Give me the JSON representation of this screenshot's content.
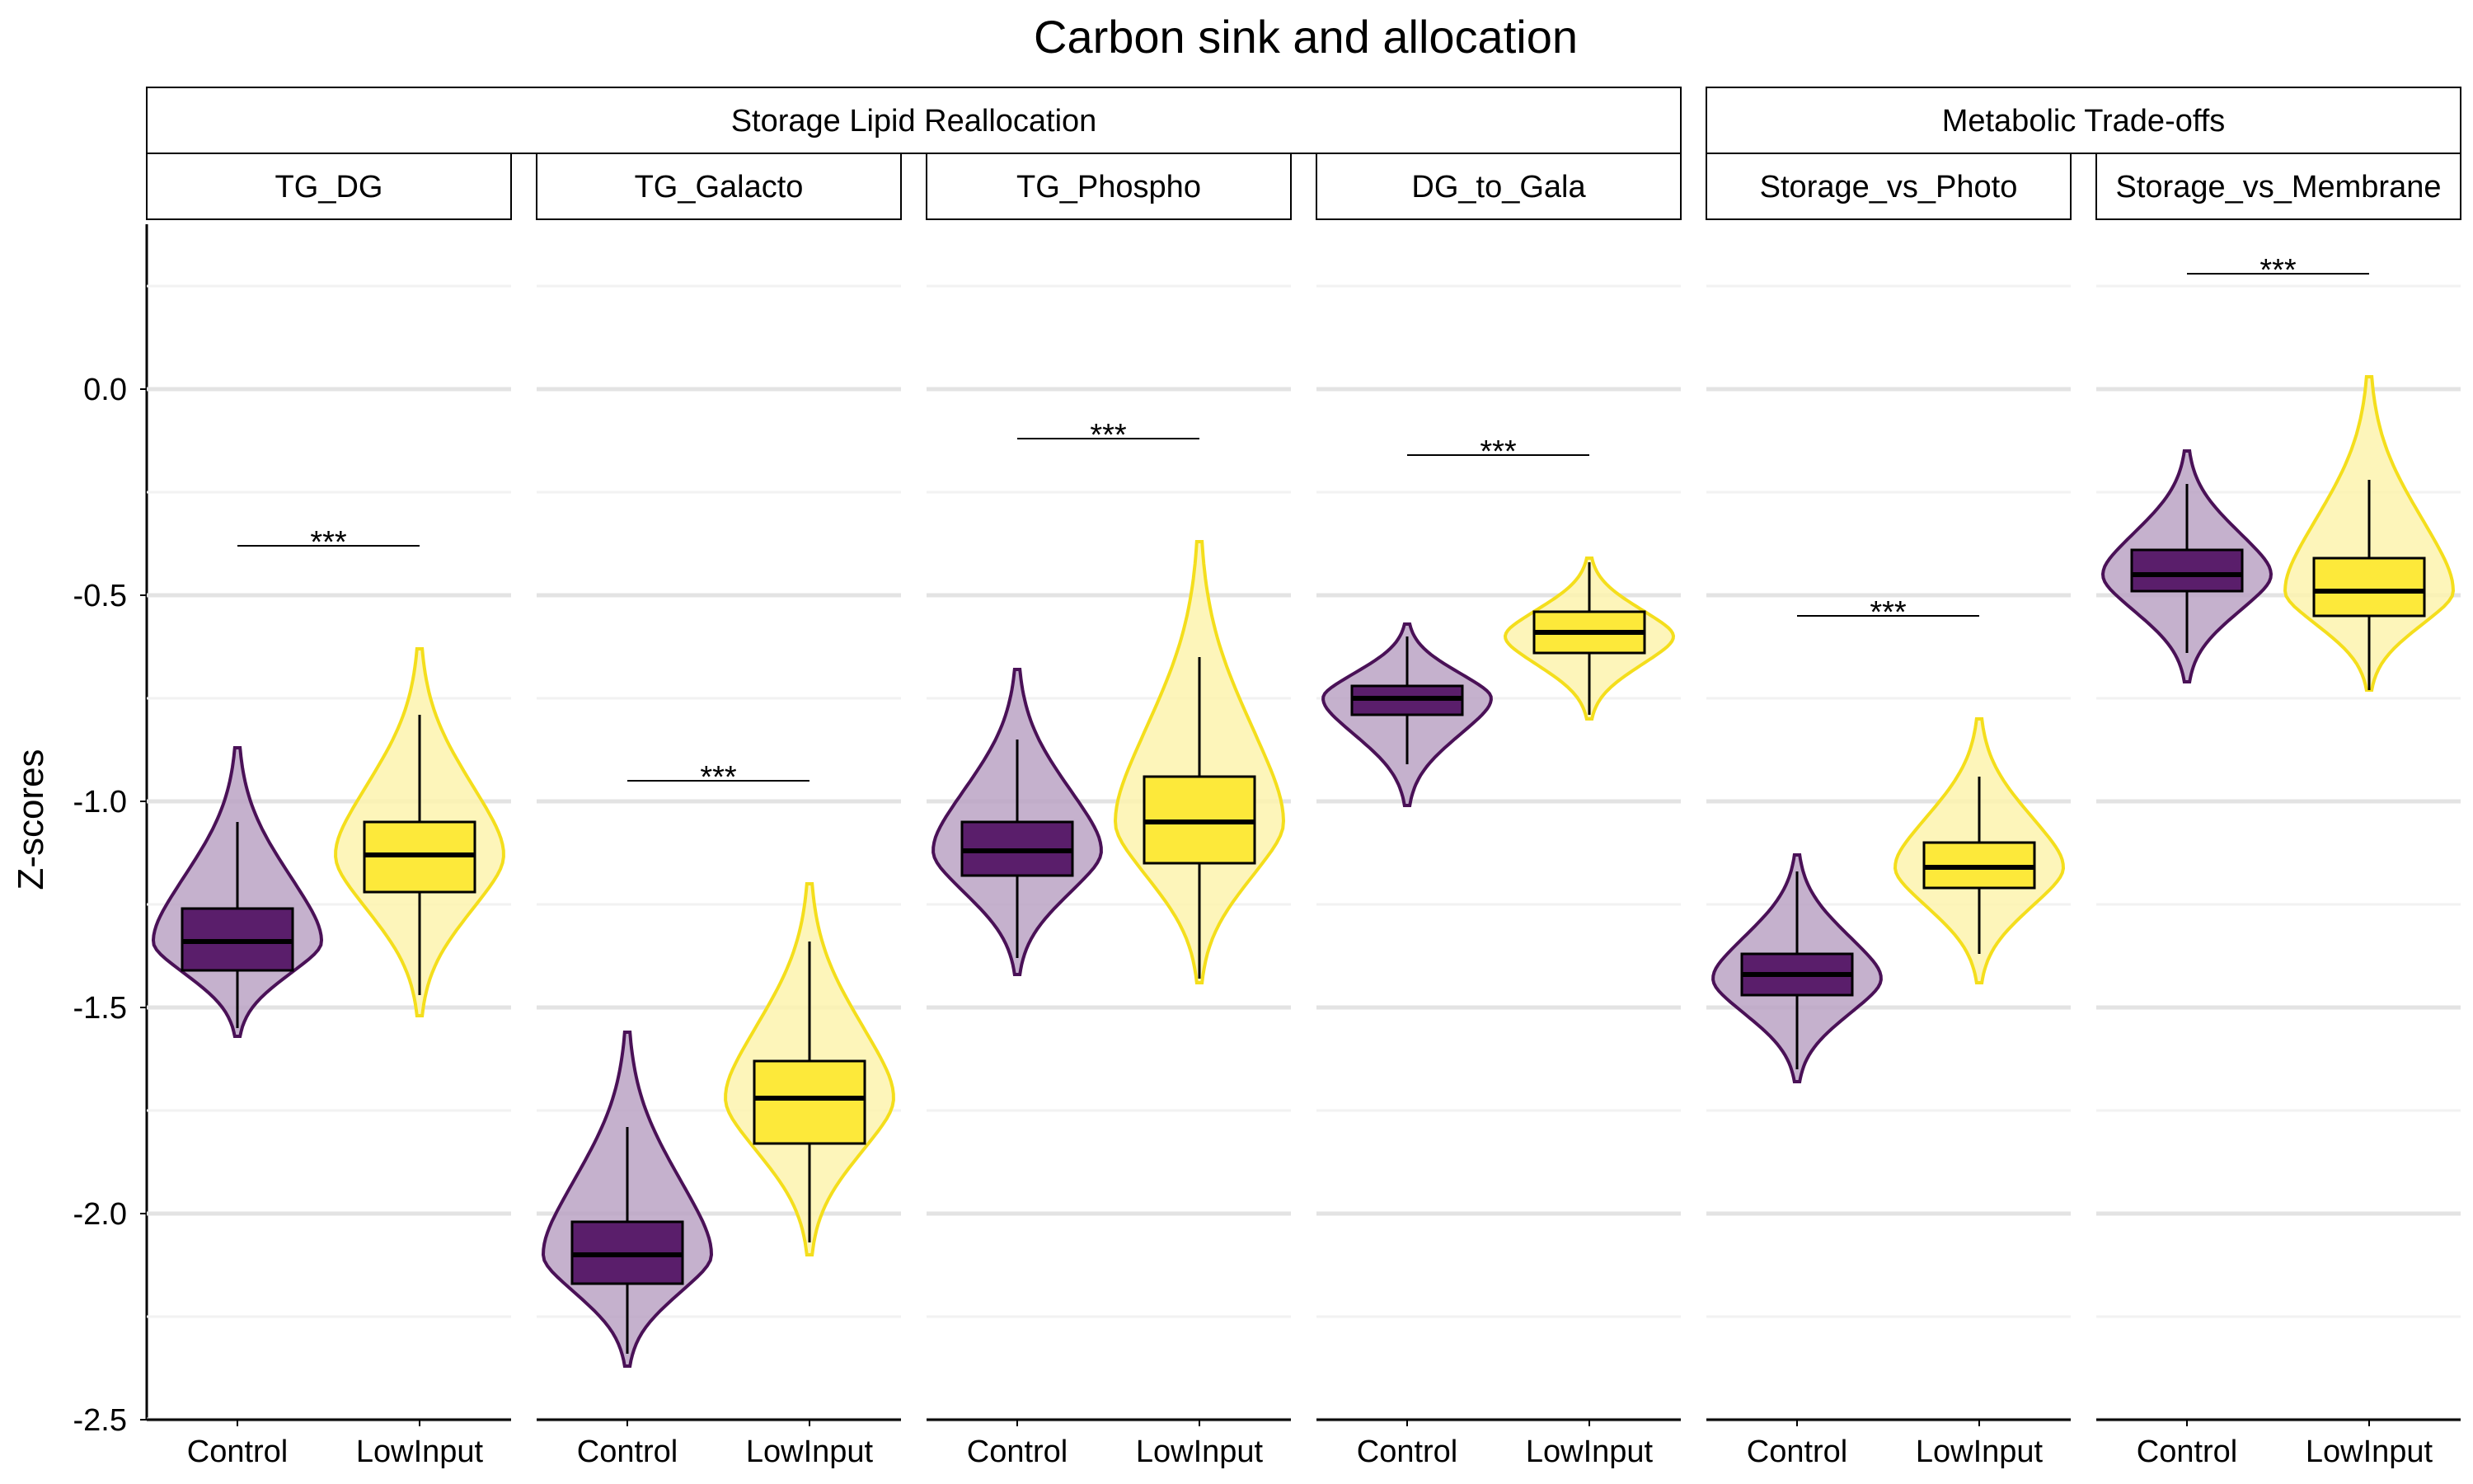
{
  "chart_data": {
    "type": "violin",
    "title": "Carbon sink and allocation",
    "ylabel": "Z-scores",
    "xlabel": "",
    "ylim": [
      -2.5,
      0.4
    ],
    "yticks": [
      0.0,
      -0.5,
      -1.0,
      -1.5,
      -2.0,
      -2.5
    ],
    "ytick_labels": [
      "0.0",
      "-0.5",
      "-1.0",
      "-1.5",
      "-2.0",
      "-2.5"
    ],
    "categories": [
      "Control",
      "LowInput"
    ],
    "colors": {
      "Control_fill": "#5a1e6b",
      "Control_violin": "#bba3c4",
      "Control_line": "#4a1157",
      "LowInput_fill": "#fde93a",
      "LowInput_violin": "#fdf3ae",
      "LowInput_line": "#f4de1c"
    },
    "groups": [
      {
        "label": "Storage Lipid Reallocation",
        "panels": [
          0,
          1,
          2,
          3
        ]
      },
      {
        "label": "Metabolic Trade-offs",
        "panels": [
          4,
          5
        ]
      }
    ],
    "panels": [
      {
        "name": "TG_DG",
        "significance": {
          "label": "***",
          "y": -0.38
        },
        "series": [
          {
            "name": "Control",
            "min": -1.57,
            "whisker_low": -1.55,
            "q1": -1.41,
            "median": -1.34,
            "q3": -1.26,
            "whisker_high": -1.05,
            "max": -0.87,
            "mode": -1.34
          },
          {
            "name": "LowInput",
            "min": -1.52,
            "whisker_low": -1.47,
            "q1": -1.22,
            "median": -1.13,
            "q3": -1.05,
            "whisker_high": -0.79,
            "max": -0.63,
            "mode": -1.13
          }
        ]
      },
      {
        "name": "TG_Galacto",
        "significance": {
          "label": "***",
          "y": -0.95
        },
        "series": [
          {
            "name": "Control",
            "min": -2.37,
            "whisker_low": -2.34,
            "q1": -2.17,
            "median": -2.1,
            "q3": -2.02,
            "whisker_high": -1.79,
            "max": -1.56,
            "mode": -2.1
          },
          {
            "name": "LowInput",
            "min": -2.1,
            "whisker_low": -2.07,
            "q1": -1.83,
            "median": -1.72,
            "q3": -1.63,
            "whisker_high": -1.34,
            "max": -1.2,
            "mode": -1.72
          }
        ]
      },
      {
        "name": "TG_Phospho",
        "significance": {
          "label": "***",
          "y": -0.12
        },
        "series": [
          {
            "name": "Control",
            "min": -1.42,
            "whisker_low": -1.38,
            "q1": -1.18,
            "median": -1.12,
            "q3": -1.05,
            "whisker_high": -0.85,
            "max": -0.68,
            "mode": -1.12
          },
          {
            "name": "LowInput",
            "min": -1.44,
            "whisker_low": -1.43,
            "q1": -1.15,
            "median": -1.05,
            "q3": -0.94,
            "whisker_high": -0.65,
            "max": -0.37,
            "mode": -1.05
          }
        ]
      },
      {
        "name": "DG_to_Gala",
        "significance": {
          "label": "***",
          "y": -0.16
        },
        "series": [
          {
            "name": "Control",
            "min": -1.01,
            "whisker_low": -0.91,
            "q1": -0.79,
            "median": -0.75,
            "q3": -0.72,
            "whisker_high": -0.6,
            "max": -0.57,
            "mode": -0.75
          },
          {
            "name": "LowInput",
            "min": -0.8,
            "whisker_low": -0.79,
            "q1": -0.64,
            "median": -0.59,
            "q3": -0.54,
            "whisker_high": -0.42,
            "max": -0.41,
            "mode": -0.6
          }
        ]
      },
      {
        "name": "Storage_vs_Photo",
        "significance": {
          "label": "***",
          "y": -0.55
        },
        "series": [
          {
            "name": "Control",
            "min": -1.68,
            "whisker_low": -1.65,
            "q1": -1.47,
            "median": -1.42,
            "q3": -1.37,
            "whisker_high": -1.17,
            "max": -1.13,
            "mode": -1.43
          },
          {
            "name": "LowInput",
            "min": -1.44,
            "whisker_low": -1.37,
            "q1": -1.21,
            "median": -1.16,
            "q3": -1.1,
            "whisker_high": -0.94,
            "max": -0.8,
            "mode": -1.16
          }
        ]
      },
      {
        "name": "Storage_vs_Membrane",
        "significance": {
          "label": "***",
          "y": 0.28
        },
        "series": [
          {
            "name": "Control",
            "min": -0.71,
            "whisker_low": -0.64,
            "q1": -0.49,
            "median": -0.45,
            "q3": -0.39,
            "whisker_high": -0.23,
            "max": -0.15,
            "mode": -0.45
          },
          {
            "name": "LowInput",
            "min": -0.73,
            "whisker_low": -0.73,
            "q1": -0.55,
            "median": -0.49,
            "q3": -0.41,
            "whisker_high": -0.22,
            "max": 0.03,
            "mode": -0.49
          }
        ]
      }
    ]
  }
}
